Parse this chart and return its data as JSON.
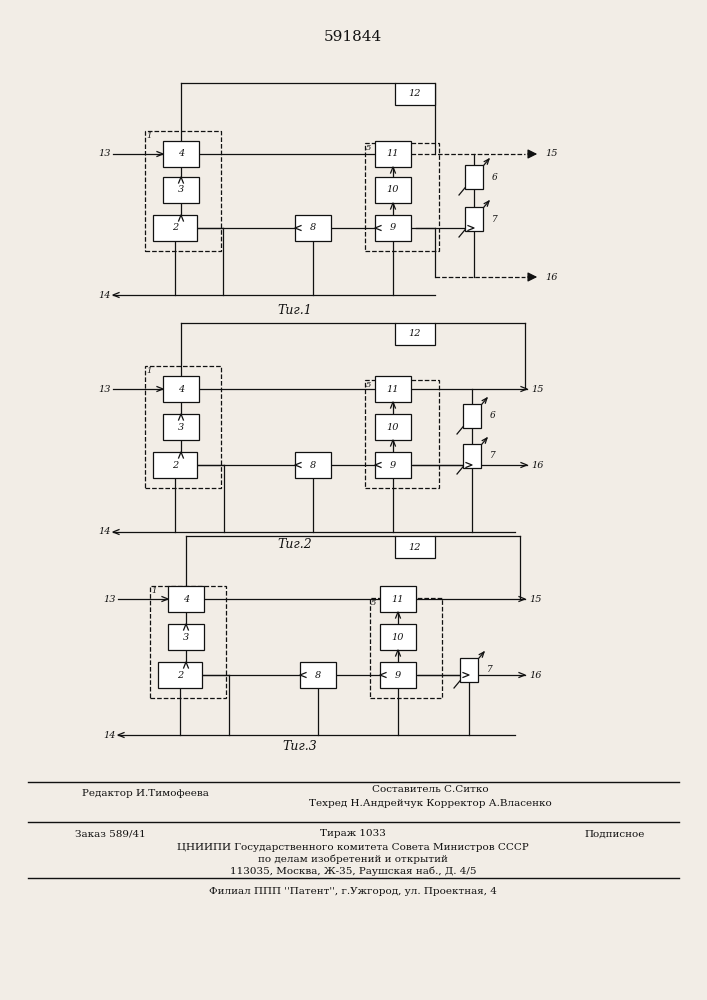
{
  "bg_color": "#f2ede6",
  "lc": "#111111",
  "title": "591844",
  "fig1_label": "Τиг.1",
  "fig2_label": "Τиг.2",
  "fig3_label": "Τиг.3",
  "footer": {
    "line1_right": "Составитель С.Ситко",
    "line2_right": "Техред Н.Андрейчук Корректор А.Власенко",
    "left": "Редактор И.Тимофеева",
    "order": "Заказ 589/41",
    "tirazh": "Тираж 1033",
    "podp": "Подписное",
    "cniip": "ЦНИИПИ Государственного комитета Совета Министров СССР",
    "dela": "по делам изобретений и открытий",
    "addr": "113035, Москва, Ж-35, Раушская наб., Д. 4/5",
    "filial": "Филиал ППП ''Патент'', г.Ужгород, ул. Проектная, 4"
  }
}
